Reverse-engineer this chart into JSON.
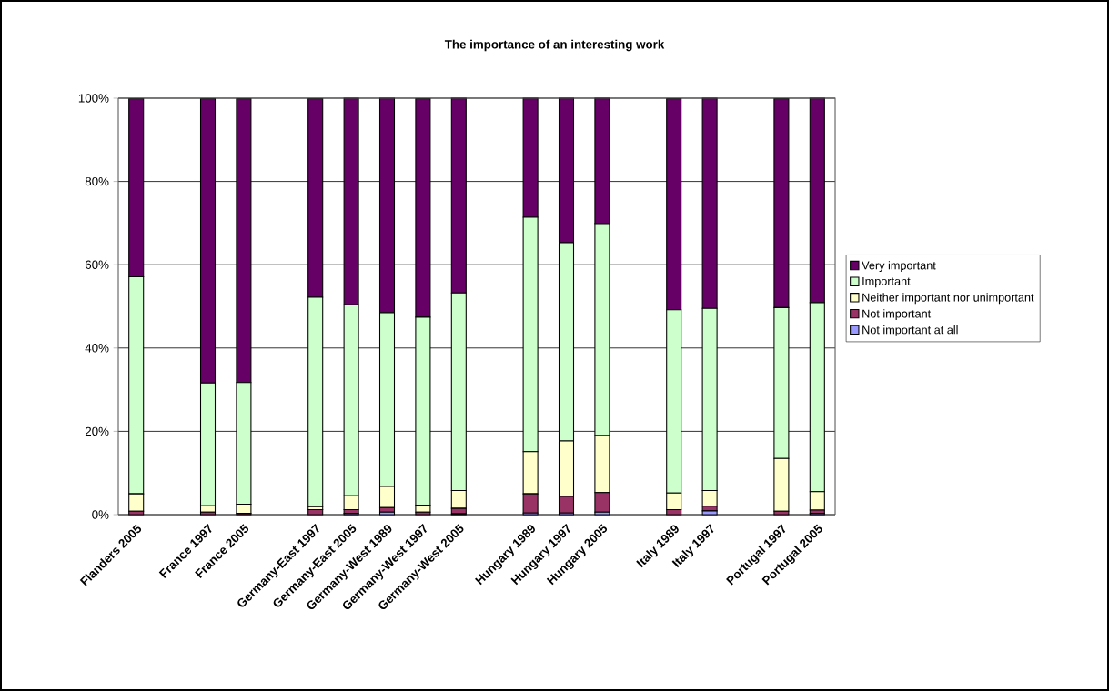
{
  "chart_data": {
    "type": "bar",
    "title": "The importance of an interesting work",
    "stacked": true,
    "grid": "y",
    "legend": "right",
    "categories": [
      "Flanders 2005",
      null,
      "France 1997",
      "France 2005",
      null,
      "Germany-East 1997",
      "Germany-East 2005",
      "Germany-West 1989",
      "Germany-West 1997",
      "Germany-West 2005",
      null,
      "Hungary 1989",
      "Hungary 1997",
      "Hungary 2005",
      null,
      "Italy 1989",
      "Italy 1997",
      null,
      "Portugal 1997",
      "Portugal 2005"
    ],
    "ylim": [
      0,
      100
    ],
    "yticks": [
      {
        "value": 0,
        "label": "0%"
      },
      {
        "value": 20,
        "label": "20%"
      },
      {
        "value": 40,
        "label": "40%"
      },
      {
        "value": 60,
        "label": "60%"
      },
      {
        "value": 80,
        "label": "80%"
      },
      {
        "value": 100,
        "label": "100%"
      }
    ],
    "series": [
      {
        "name": "Not important at all",
        "color": "#9999ff",
        "values": [
          null,
          null,
          null,
          null,
          null,
          null,
          0.3,
          0.6,
          null,
          0.2,
          null,
          0.4,
          0.4,
          0.6,
          null,
          null,
          0.9,
          null,
          null,
          0.3
        ]
      },
      {
        "name": "Not important",
        "color": "#993366",
        "values": [
          0.8,
          null,
          0.6,
          0.3,
          null,
          1.2,
          0.9,
          1.1,
          0.6,
          1.3,
          null,
          4.6,
          4.0,
          4.7,
          null,
          1.2,
          1.1,
          null,
          0.8,
          0.8
        ]
      },
      {
        "name": "Neither important nor unimportant",
        "color": "#ffffcc",
        "values": [
          4.2,
          null,
          1.5,
          2.2,
          null,
          0.7,
          3.3,
          5.1,
          1.7,
          4.3,
          null,
          10.1,
          13.3,
          13.7,
          null,
          4.0,
          3.8,
          null,
          12.7,
          4.4
        ]
      },
      {
        "name": "Important",
        "color": "#ccffcc",
        "values": [
          52.1,
          null,
          29.5,
          29.2,
          null,
          50.3,
          45.9,
          41.7,
          45.1,
          47.4,
          null,
          56.3,
          47.6,
          50.9,
          null,
          44.0,
          43.7,
          null,
          36.2,
          45.4
        ]
      },
      {
        "name": "Very important",
        "color": "#660066",
        "values": [
          42.8,
          null,
          68.3,
          68.2,
          null,
          47.7,
          49.6,
          51.5,
          52.5,
          46.8,
          null,
          28.6,
          34.7,
          30.1,
          null,
          50.7,
          50.5,
          null,
          50.2,
          49.1
        ]
      }
    ]
  }
}
